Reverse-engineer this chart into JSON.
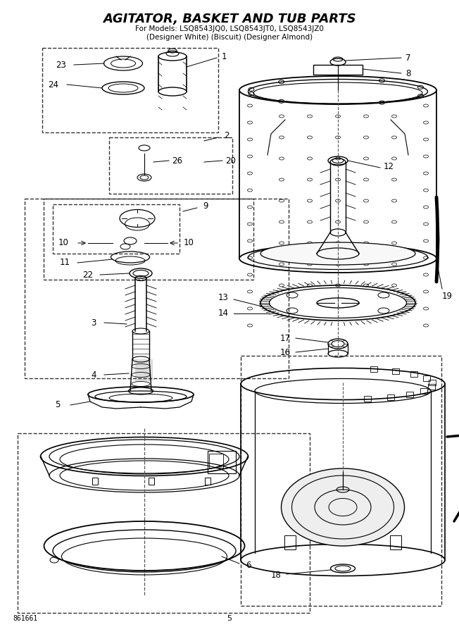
{
  "title": "AGITATOR, BASKET AND TUB PARTS",
  "subtitle1": "For Models: LSQ8543JQ0, LSQ8543JT0, LSQ8543JZ0",
  "subtitle2": "(Designer White) (Biscuit) (Designer Almond)",
  "part_number": "861661",
  "page": "5",
  "bg_color": "#ffffff",
  "lc": "#000000",
  "title_fontsize": 13,
  "sub1_fontsize": 7.5,
  "sub2_fontsize": 7.5,
  "label_fontsize": 8.5
}
